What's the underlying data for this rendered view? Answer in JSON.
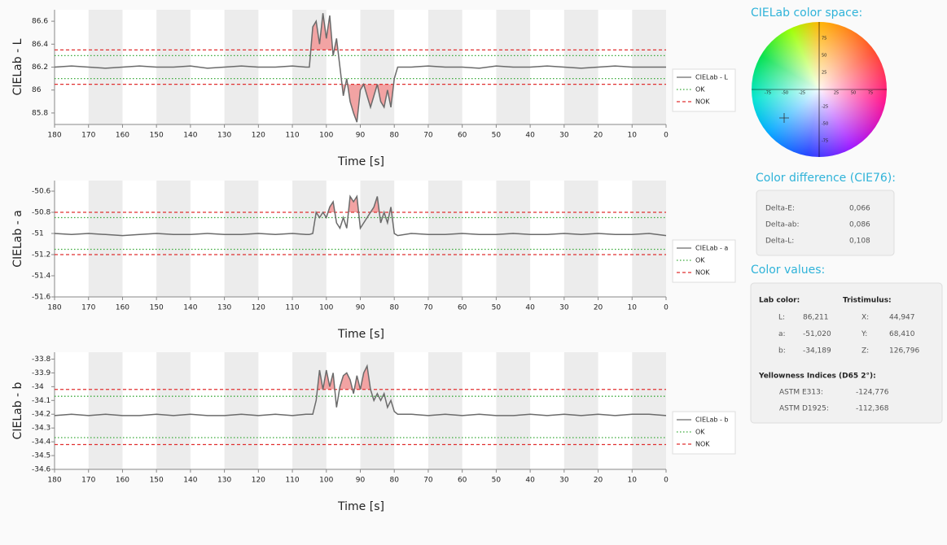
{
  "chart_data": [
    {
      "type": "line",
      "y_label": "CIELab - L",
      "x_label": "Time [s]",
      "xlim": [
        180,
        0
      ],
      "xticks": [
        180,
        170,
        160,
        150,
        140,
        130,
        120,
        110,
        100,
        90,
        80,
        70,
        60,
        50,
        40,
        30,
        20,
        10,
        0
      ],
      "ylim": [
        85.7,
        86.7
      ],
      "yticks": [
        85.8,
        86,
        86.2,
        86.4,
        86.6
      ],
      "band_color": "#ececec",
      "exceedance_fill": "#f2a3a3",
      "x": [
        180,
        175,
        170,
        165,
        160,
        155,
        150,
        145,
        140,
        135,
        130,
        125,
        120,
        115,
        110,
        106,
        105,
        104,
        103,
        102,
        101,
        100,
        99,
        98,
        97,
        96,
        95,
        94,
        93,
        92,
        91,
        90,
        89,
        88,
        87,
        86,
        85,
        84,
        83,
        82,
        81,
        80,
        79,
        75,
        70,
        65,
        60,
        55,
        50,
        45,
        40,
        35,
        30,
        25,
        20,
        15,
        10,
        5,
        0
      ],
      "series": [
        {
          "name": "CIELab - L",
          "color": "#6b6b6b",
          "values": [
            86.2,
            86.21,
            86.2,
            86.19,
            86.2,
            86.21,
            86.2,
            86.2,
            86.21,
            86.19,
            86.2,
            86.21,
            86.2,
            86.2,
            86.21,
            86.2,
            86.2,
            86.55,
            86.6,
            86.4,
            86.67,
            86.45,
            86.65,
            86.3,
            86.45,
            86.2,
            85.95,
            86.1,
            85.9,
            85.8,
            85.72,
            86.0,
            86.05,
            85.95,
            85.85,
            85.95,
            86.05,
            85.9,
            85.85,
            86.0,
            85.85,
            86.1,
            86.2,
            86.2,
            86.21,
            86.2,
            86.2,
            86.19,
            86.21,
            86.2,
            86.2,
            86.21,
            86.2,
            86.19,
            86.2,
            86.21,
            86.2,
            86.2,
            86.2
          ]
        },
        {
          "name": "OK",
          "color": "#3aaa3a",
          "style": "dotted",
          "levels": [
            86.1,
            86.3
          ]
        },
        {
          "name": "NOK",
          "color": "#e03030",
          "style": "dashed",
          "levels": [
            86.05,
            86.35
          ]
        }
      ]
    },
    {
      "type": "line",
      "y_label": "CIELab - a",
      "x_label": "Time [s]",
      "xlim": [
        180,
        0
      ],
      "xticks": [
        180,
        170,
        160,
        150,
        140,
        130,
        120,
        110,
        100,
        90,
        80,
        70,
        60,
        50,
        40,
        30,
        20,
        10,
        0
      ],
      "ylim": [
        -51.6,
        -50.5
      ],
      "yticks": [
        -50.6,
        -50.8,
        -51,
        -51.2,
        -51.4,
        -51.6
      ],
      "band_color": "#ececec",
      "exceedance_fill": "#f2a3a3",
      "x": [
        180,
        175,
        170,
        165,
        160,
        155,
        150,
        145,
        140,
        135,
        130,
        125,
        120,
        115,
        110,
        106,
        105,
        104,
        103,
        102,
        101,
        100,
        99,
        98,
        97,
        96,
        95,
        94,
        93,
        92,
        91,
        90,
        89,
        88,
        87,
        86,
        85,
        84,
        83,
        82,
        81,
        80,
        79,
        75,
        70,
        65,
        60,
        55,
        50,
        45,
        40,
        35,
        30,
        25,
        20,
        15,
        10,
        5,
        0
      ],
      "series": [
        {
          "name": "CIELab - a",
          "color": "#6b6b6b",
          "values": [
            -51.0,
            -51.01,
            -51.0,
            -51.01,
            -51.02,
            -51.01,
            -51.0,
            -51.01,
            -51.01,
            -51.0,
            -51.01,
            -51.01,
            -51.0,
            -51.01,
            -51.0,
            -51.01,
            -51.01,
            -51.0,
            -50.8,
            -50.85,
            -50.8,
            -50.85,
            -50.75,
            -50.7,
            -50.9,
            -50.95,
            -50.85,
            -50.95,
            -50.65,
            -50.7,
            -50.65,
            -50.95,
            -50.9,
            -50.85,
            -50.8,
            -50.75,
            -50.65,
            -50.9,
            -50.8,
            -50.9,
            -50.75,
            -51.0,
            -51.02,
            -51.0,
            -51.01,
            -51.01,
            -51.0,
            -51.01,
            -51.01,
            -51.0,
            -51.01,
            -51.01,
            -51.0,
            -51.01,
            -51.0,
            -51.01,
            -51.01,
            -51.0,
            -51.02
          ]
        },
        {
          "name": "OK",
          "color": "#3aaa3a",
          "style": "dotted",
          "levels": [
            -51.15,
            -50.85
          ]
        },
        {
          "name": "NOK",
          "color": "#e03030",
          "style": "dashed",
          "levels": [
            -51.2,
            -50.8
          ]
        }
      ]
    },
    {
      "type": "line",
      "y_label": "CIELab - b",
      "x_label": "Time [s]",
      "xlim": [
        180,
        0
      ],
      "xticks": [
        180,
        170,
        160,
        150,
        140,
        130,
        120,
        110,
        100,
        90,
        80,
        70,
        60,
        50,
        40,
        30,
        20,
        10,
        0
      ],
      "ylim": [
        -34.6,
        -33.75
      ],
      "yticks": [
        -33.8,
        -33.9,
        -34,
        -34.1,
        -34.2,
        -34.3,
        -34.4,
        -34.5,
        -34.6
      ],
      "band_color": "#ececec",
      "exceedance_fill": "#f2a3a3",
      "x": [
        180,
        175,
        170,
        165,
        160,
        155,
        150,
        145,
        140,
        135,
        130,
        125,
        120,
        115,
        110,
        106,
        105,
        104,
        103,
        102,
        101,
        100,
        99,
        98,
        97,
        96,
        95,
        94,
        93,
        92,
        91,
        90,
        89,
        88,
        87,
        86,
        85,
        84,
        83,
        82,
        81,
        80,
        79,
        75,
        70,
        65,
        60,
        55,
        50,
        45,
        40,
        35,
        30,
        25,
        20,
        15,
        10,
        5,
        0
      ],
      "series": [
        {
          "name": "CIELab - b",
          "color": "#6b6b6b",
          "values": [
            -34.21,
            -34.2,
            -34.21,
            -34.2,
            -34.21,
            -34.21,
            -34.2,
            -34.21,
            -34.2,
            -34.21,
            -34.21,
            -34.2,
            -34.21,
            -34.2,
            -34.21,
            -34.2,
            -34.2,
            -34.2,
            -34.1,
            -33.88,
            -34.02,
            -33.88,
            -34.0,
            -33.9,
            -34.15,
            -34.0,
            -33.92,
            -33.9,
            -33.95,
            -34.05,
            -33.92,
            -34.02,
            -33.9,
            -33.85,
            -34.02,
            -34.1,
            -34.05,
            -34.1,
            -34.05,
            -34.15,
            -34.1,
            -34.18,
            -34.2,
            -34.2,
            -34.21,
            -34.2,
            -34.21,
            -34.2,
            -34.21,
            -34.21,
            -34.2,
            -34.21,
            -34.2,
            -34.21,
            -34.2,
            -34.21,
            -34.2,
            -34.2,
            -34.21
          ]
        },
        {
          "name": "OK",
          "color": "#3aaa3a",
          "style": "dotted",
          "levels": [
            -34.37,
            -34.07
          ]
        },
        {
          "name": "NOK",
          "color": "#e03030",
          "style": "dashed",
          "levels": [
            -34.42,
            -34.02
          ]
        }
      ]
    }
  ],
  "color_space": {
    "title": "CIELab color space:",
    "ticks": [
      -75,
      -50,
      -25,
      25,
      50,
      75
    ]
  },
  "color_difference": {
    "title": "Color difference (CIE76):",
    "rows": [
      [
        "Delta-E:",
        "0,066"
      ],
      [
        "Delta-ab:",
        "0,086"
      ],
      [
        "Delta-L:",
        "0,108"
      ]
    ]
  },
  "color_values": {
    "title": "Color values:",
    "lab_header": "Lab color:",
    "tristimulus_header": "Tristimulus:",
    "rows": [
      [
        "L:",
        "86,211",
        "X:",
        "44,947"
      ],
      [
        "a:",
        "-51,020",
        "Y:",
        "68,410"
      ],
      [
        "b:",
        "-34,189",
        "Z:",
        "126,796"
      ]
    ],
    "yellowness_header": "Yellowness Indices (D65 2°):",
    "yellowness": [
      [
        "ASTM E313:",
        "-124,776"
      ],
      [
        "ASTM D1925:",
        "-112,368"
      ]
    ]
  }
}
